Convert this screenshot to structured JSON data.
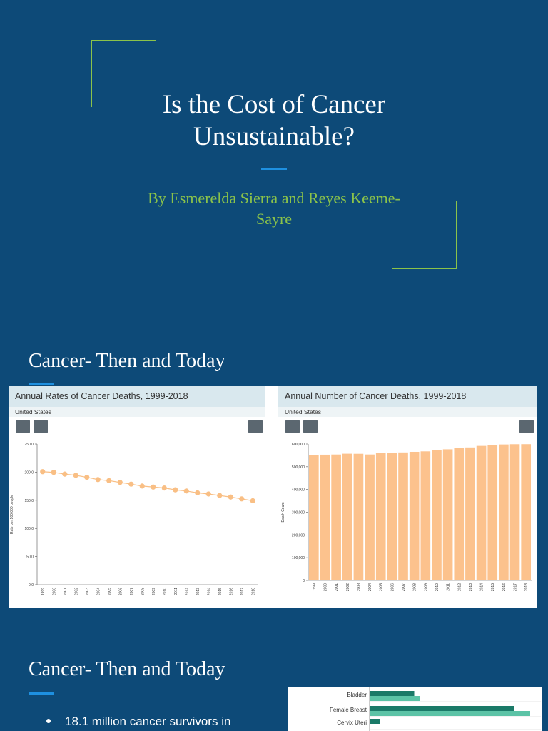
{
  "slide1": {
    "title_line1": "Is the Cost of Cancer",
    "title_line2": "Unsustainable?",
    "subtitle_line1": "By Esmerelda Sierra and Reyes Keeme-",
    "subtitle_line2": "Sayre"
  },
  "slide2": {
    "heading": "Cancer- Then and Today"
  },
  "slide3": {
    "heading": "Cancer- Then and Today",
    "bullets": [
      "18.1 million cancer survivors in"
    ]
  },
  "chart_data": [
    {
      "type": "line",
      "title": "Annual Rates of Cancer Deaths, 1999-2018",
      "subtitle": "United States",
      "y_label": "Rate per 100,000 people",
      "color": "#f9bf85",
      "categories": [
        "1999",
        "2000",
        "2001",
        "2002",
        "2003",
        "2004",
        "2005",
        "2006",
        "2007",
        "2008",
        "2009",
        "2010",
        "2011",
        "2012",
        "2013",
        "2014",
        "2015",
        "2016",
        "2017",
        "2018"
      ],
      "values": [
        200.8,
        199.6,
        196.5,
        194.3,
        190.9,
        186.8,
        184.9,
        181.8,
        178.7,
        175.3,
        173.5,
        171.8,
        168.6,
        166.5,
        163.2,
        161.2,
        158.5,
        155.8,
        152.5,
        149.1
      ],
      "ylim": [
        0,
        250
      ],
      "yticks": [
        {
          "value": 0,
          "label": "0.0"
        },
        {
          "value": 50,
          "label": "50.0"
        },
        {
          "value": 100,
          "label": "100.0"
        },
        {
          "value": 150,
          "label": "150.0"
        },
        {
          "value": 200,
          "label": "200.0"
        },
        {
          "value": 250,
          "label": "250.0"
        }
      ]
    },
    {
      "type": "bar",
      "title": "Annual Number of Cancer Deaths, 1999-2018",
      "subtitle": "United States",
      "y_label": "Death Count",
      "color": "#fcc28d",
      "categories": [
        "1999",
        "2000",
        "2001",
        "2002",
        "2003",
        "2004",
        "2005",
        "2006",
        "2007",
        "2008",
        "2009",
        "2010",
        "2011",
        "2012",
        "2013",
        "2014",
        "2015",
        "2016",
        "2017",
        "2018"
      ],
      "values": [
        549838,
        553091,
        553768,
        557271,
        556902,
        553888,
        559312,
        559888,
        562875,
        565469,
        567628,
        574743,
        576691,
        582623,
        584881,
        591700,
        595930,
        598038,
        599108,
        599274
      ],
      "ylim": [
        0,
        600000
      ],
      "yticks": [
        0,
        {
          "value": 100000,
          "label": "100,000"
        },
        {
          "value": 200000,
          "label": "200,000"
        },
        {
          "value": 300000,
          "label": "300,000"
        },
        {
          "value": 400000,
          "label": "400,000"
        },
        {
          "value": 500000,
          "label": "500,000"
        },
        {
          "value": 600000,
          "label": "600,000"
        }
      ]
    },
    {
      "type": "hbar",
      "categories": [
        "Bladder",
        "Female Breast",
        "Cervix Uteri"
      ],
      "series": [
        {
          "color": "#1b7a68",
          "values": [
            25,
            81,
            6
          ]
        },
        {
          "color": "#5cc3a6",
          "values": [
            28,
            90,
            null
          ]
        }
      ]
    }
  ]
}
